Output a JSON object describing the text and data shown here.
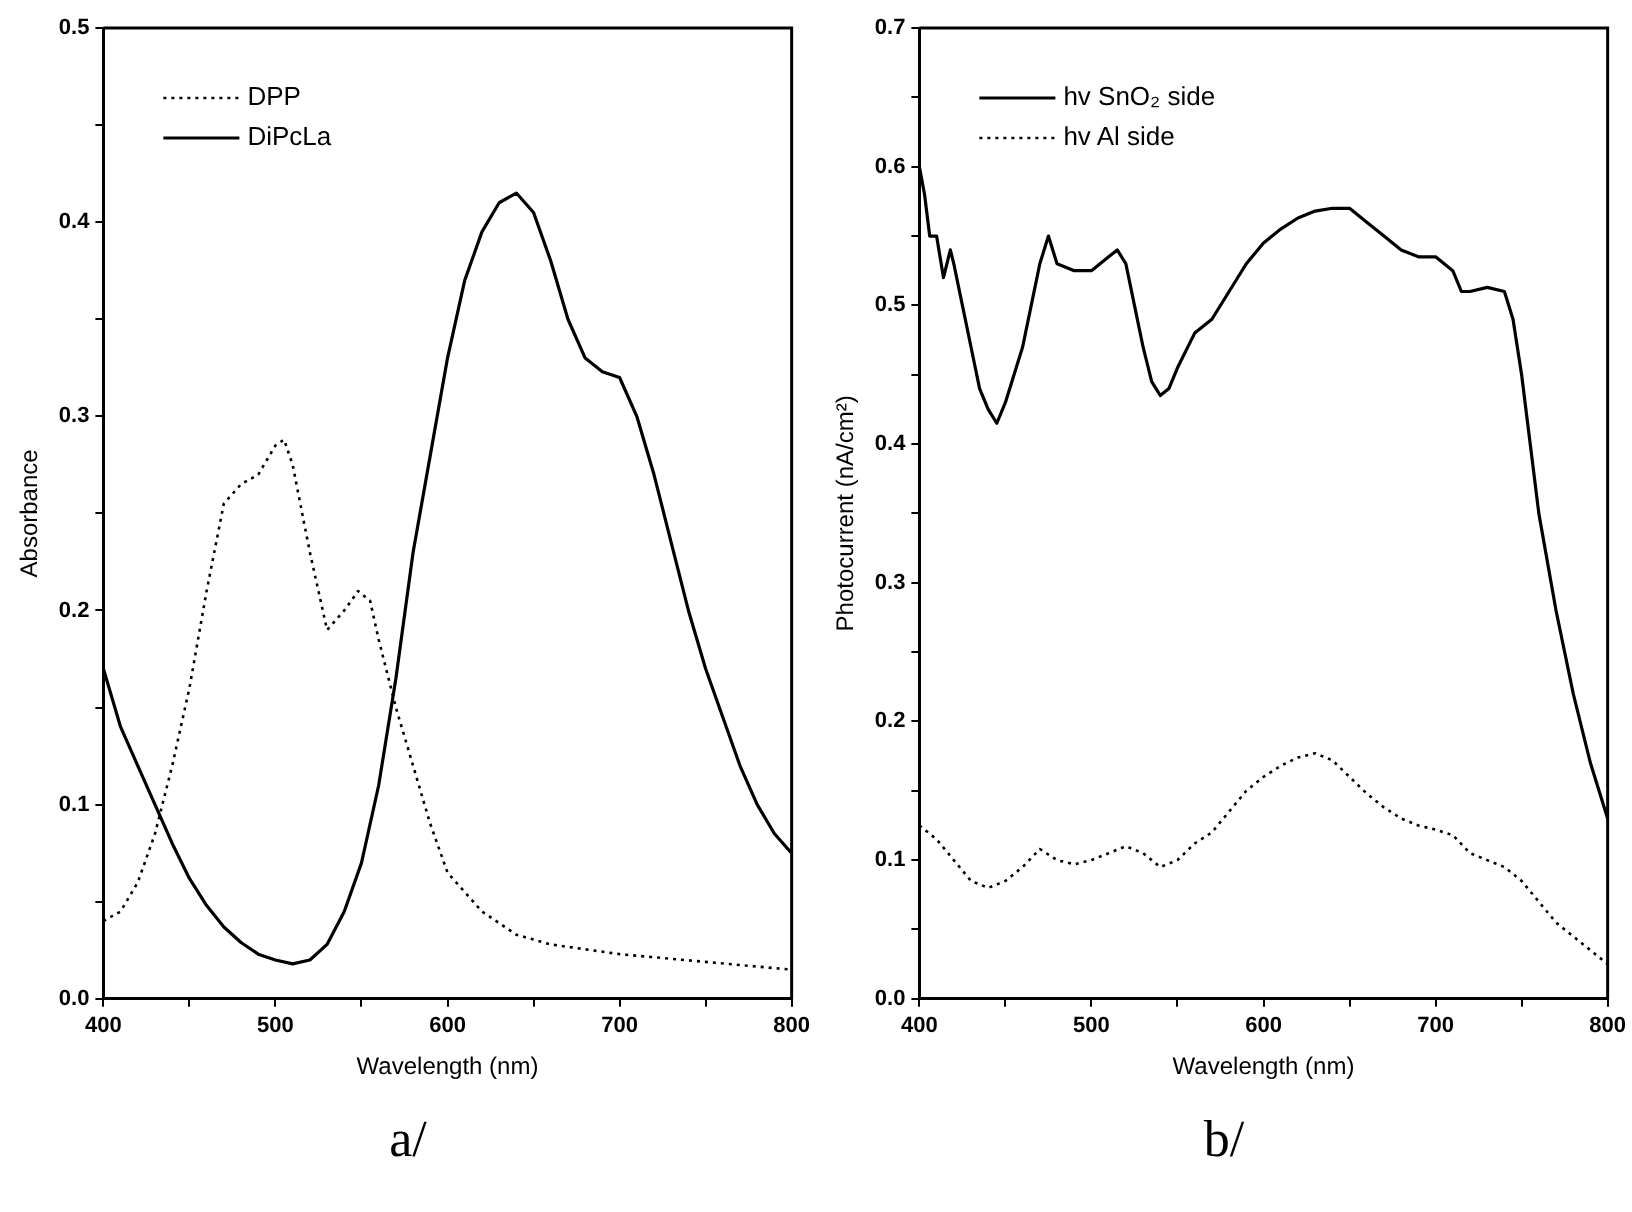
{
  "chart_data": [
    {
      "type": "line",
      "xlabel": "Wavelength (nm)",
      "ylabel": "Absorbance",
      "annotations": [
        "a/"
      ],
      "legend": "top left",
      "grid": false,
      "marker": "none",
      "xlim": [
        400,
        800
      ],
      "xticks": [
        400,
        {
          "value": 450,
          "label": null
        },
        500,
        {
          "value": 550,
          "label": null
        },
        600,
        {
          "value": 650,
          "label": null
        },
        700,
        {
          "value": 750,
          "label": null
        },
        800
      ],
      "ylim": [
        0,
        0.5
      ],
      "yticks": [
        {
          "value": 0,
          "label": "0.0"
        },
        {
          "value": 0.05,
          "label": null
        },
        0.1,
        {
          "value": 0.15,
          "label": null
        },
        0.2,
        {
          "value": 0.25,
          "label": null
        },
        0.3,
        {
          "value": 0.35,
          "label": null
        },
        0.4,
        {
          "value": 0.45,
          "label": null
        },
        0.5
      ],
      "series": [
        {
          "name": "DPP",
          "color": "#000000",
          "line_style": "dotted",
          "x": [
            400,
            410,
            420,
            430,
            440,
            450,
            460,
            470,
            480,
            490,
            500,
            505,
            510,
            520,
            530,
            540,
            548,
            555,
            560,
            570,
            580,
            590,
            600,
            620,
            640,
            660,
            700,
            750,
            800
          ],
          "values": [
            0.04,
            0.045,
            0.06,
            0.085,
            0.12,
            0.16,
            0.21,
            0.255,
            0.265,
            0.27,
            0.285,
            0.288,
            0.275,
            0.23,
            0.19,
            0.2,
            0.21,
            0.205,
            0.185,
            0.15,
            0.12,
            0.09,
            0.065,
            0.045,
            0.033,
            0.028,
            0.023,
            0.019,
            0.015
          ]
        },
        {
          "name": "DiPcLa",
          "color": "#000000",
          "line_style": "solid",
          "x": [
            400,
            410,
            420,
            430,
            440,
            450,
            460,
            470,
            480,
            490,
            500,
            510,
            520,
            530,
            540,
            550,
            560,
            570,
            580,
            590,
            600,
            610,
            620,
            630,
            640,
            650,
            660,
            670,
            680,
            690,
            700,
            710,
            720,
            730,
            740,
            750,
            760,
            770,
            780,
            790,
            800
          ],
          "values": [
            0.17,
            0.14,
            0.12,
            0.1,
            0.08,
            0.062,
            0.048,
            0.037,
            0.029,
            0.023,
            0.02,
            0.018,
            0.02,
            0.028,
            0.045,
            0.07,
            0.11,
            0.165,
            0.23,
            0.28,
            0.33,
            0.37,
            0.395,
            0.41,
            0.415,
            0.405,
            0.38,
            0.35,
            0.33,
            0.323,
            0.32,
            0.3,
            0.27,
            0.235,
            0.2,
            0.17,
            0.145,
            0.12,
            0.1,
            0.085,
            0.075
          ]
        }
      ]
    },
    {
      "type": "line",
      "xlabel": "Wavelength (nm)",
      "ylabel": "Photocurrent (nA/cm²)",
      "annotations": [
        "b/"
      ],
      "legend": "top left",
      "grid": false,
      "marker": "none",
      "xlim": [
        400,
        800
      ],
      "xticks": [
        400,
        {
          "value": 450,
          "label": null
        },
        500,
        {
          "value": 550,
          "label": null
        },
        600,
        {
          "value": 650,
          "label": null
        },
        700,
        {
          "value": 750,
          "label": null
        },
        800
      ],
      "ylim": [
        0,
        0.7
      ],
      "yticks": [
        {
          "value": 0,
          "label": "0.0"
        },
        {
          "value": 0.05,
          "label": null
        },
        0.1,
        {
          "value": 0.15,
          "label": null
        },
        0.2,
        {
          "value": 0.25,
          "label": null
        },
        0.3,
        {
          "value": 0.35,
          "label": null
        },
        0.4,
        {
          "value": 0.45,
          "label": null
        },
        0.5,
        {
          "value": 0.55,
          "label": null
        },
        0.6,
        {
          "value": 0.65,
          "label": null
        },
        0.7
      ],
      "series": [
        {
          "name": "hv SnO₂ side",
          "color": "#000000",
          "line_style": "solid",
          "x": [
            400,
            403,
            406,
            410,
            414,
            418,
            420,
            425,
            430,
            435,
            440,
            445,
            450,
            455,
            460,
            465,
            470,
            475,
            480,
            490,
            500,
            510,
            515,
            520,
            525,
            530,
            535,
            540,
            545,
            550,
            560,
            570,
            580,
            590,
            600,
            610,
            620,
            630,
            640,
            650,
            660,
            670,
            680,
            690,
            700,
            710,
            715,
            720,
            730,
            740,
            745,
            750,
            755,
            760,
            770,
            780,
            790,
            800
          ],
          "values": [
            0.6,
            0.58,
            0.55,
            0.55,
            0.52,
            0.54,
            0.53,
            0.5,
            0.47,
            0.44,
            0.425,
            0.415,
            0.43,
            0.45,
            0.47,
            0.5,
            0.53,
            0.55,
            0.53,
            0.525,
            0.525,
            0.535,
            0.54,
            0.53,
            0.5,
            0.47,
            0.445,
            0.435,
            0.44,
            0.455,
            0.48,
            0.49,
            0.51,
            0.53,
            0.545,
            0.555,
            0.563,
            0.568,
            0.57,
            0.57,
            0.56,
            0.55,
            0.54,
            0.535,
            0.535,
            0.525,
            0.51,
            0.51,
            0.513,
            0.51,
            0.49,
            0.45,
            0.4,
            0.35,
            0.28,
            0.22,
            0.17,
            0.13
          ]
        },
        {
          "name": "hv Al side",
          "color": "#000000",
          "line_style": "dotted",
          "x": [
            400,
            405,
            410,
            420,
            430,
            440,
            450,
            460,
            470,
            480,
            490,
            500,
            510,
            520,
            530,
            540,
            550,
            560,
            570,
            580,
            590,
            600,
            610,
            620,
            630,
            640,
            650,
            660,
            670,
            680,
            690,
            700,
            710,
            720,
            730,
            740,
            750,
            760,
            770,
            780,
            790,
            800
          ],
          "values": [
            0.125,
            0.12,
            0.115,
            0.1,
            0.085,
            0.08,
            0.085,
            0.095,
            0.108,
            0.1,
            0.097,
            0.1,
            0.105,
            0.11,
            0.105,
            0.095,
            0.1,
            0.112,
            0.12,
            0.135,
            0.15,
            0.16,
            0.168,
            0.174,
            0.177,
            0.172,
            0.16,
            0.148,
            0.138,
            0.13,
            0.125,
            0.122,
            0.118,
            0.105,
            0.1,
            0.095,
            0.085,
            0.07,
            0.055,
            0.045,
            0.035,
            0.025
          ]
        }
      ]
    }
  ]
}
